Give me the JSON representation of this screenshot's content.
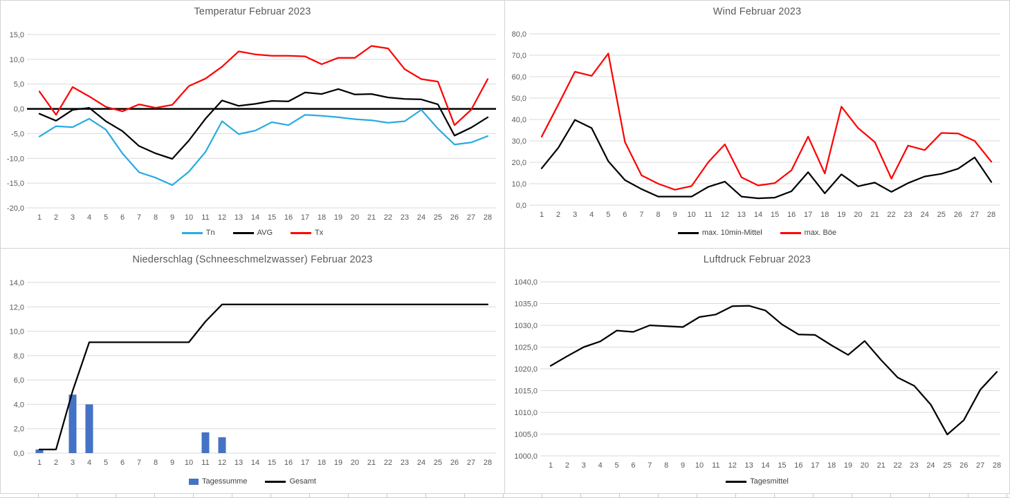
{
  "colors": {
    "grid_line": "#D9D9D9",
    "axis_text": "#595959",
    "title_text": "#595959",
    "panel_border": "#D3D3D3",
    "tn_blue": "#29ABE2",
    "series_black": "#000000",
    "series_red": "#FF0000",
    "bar_blue": "#4472C4"
  },
  "chart_data": [
    {
      "id": "temperatur",
      "type": "line",
      "title": "Temperatur Februar 2023",
      "categories": [
        1,
        2,
        3,
        4,
        5,
        6,
        7,
        8,
        9,
        10,
        11,
        12,
        13,
        14,
        15,
        16,
        17,
        18,
        19,
        20,
        21,
        22,
        23,
        24,
        25,
        26,
        27,
        28
      ],
      "ylim": [
        -20,
        15
      ],
      "ystep": 5,
      "y_tick_labels": [
        "15,0",
        "10,0",
        "5,0",
        "0,0",
        "-5,0",
        "-10,0",
        "-15,0",
        "-20,0"
      ],
      "grid": true,
      "zero_axis": true,
      "legend_position": "bottom",
      "series": [
        {
          "name": "Tn",
          "type": "line",
          "color": "#29ABE2",
          "values": [
            -5.6,
            -3.5,
            -3.7,
            -2.0,
            -4.2,
            -9.0,
            -12.8,
            -13.9,
            -15.4,
            -12.7,
            -8.7,
            -2.5,
            -5.1,
            -4.4,
            -2.7,
            -3.3,
            -1.2,
            -1.4,
            -1.7,
            -2.1,
            -2.3,
            -2.8,
            -2.5,
            -0.2,
            -4.0,
            -7.2,
            -6.8,
            -5.5
          ]
        },
        {
          "name": "AVG",
          "type": "line",
          "color": "#000000",
          "values": [
            -1.0,
            -2.4,
            -0.2,
            0.2,
            -2.5,
            -4.5,
            -7.5,
            -9.0,
            -10.1,
            -6.4,
            -2.0,
            1.7,
            0.6,
            1.0,
            1.6,
            1.5,
            3.3,
            3.0,
            4.0,
            2.9,
            3.0,
            2.3,
            2.0,
            1.9,
            0.9,
            -5.4,
            -3.8,
            -1.7
          ]
        },
        {
          "name": "Tx",
          "type": "line",
          "color": "#FF0000",
          "values": [
            3.5,
            -1.2,
            4.4,
            2.5,
            0.4,
            -0.5,
            0.9,
            0.2,
            0.8,
            4.6,
            6.1,
            8.5,
            11.6,
            11.0,
            10.7,
            10.7,
            10.6,
            9.0,
            10.3,
            10.3,
            12.7,
            12.2,
            8.0,
            6.0,
            5.5,
            -3.3,
            -0.2,
            6.0
          ]
        }
      ]
    },
    {
      "id": "wind",
      "type": "line",
      "title": "Wind Februar 2023",
      "categories": [
        1,
        2,
        3,
        4,
        5,
        6,
        7,
        8,
        9,
        10,
        11,
        12,
        13,
        14,
        15,
        16,
        17,
        18,
        19,
        20,
        21,
        22,
        23,
        24,
        25,
        26,
        27,
        28
      ],
      "ylim": [
        0,
        80
      ],
      "ystep": 10,
      "y_tick_labels": [
        "80,0",
        "70,0",
        "60,0",
        "50,0",
        "40,0",
        "30,0",
        "20,0",
        "10,0",
        "0,0"
      ],
      "grid": true,
      "zero_axis": false,
      "legend_position": "bottom",
      "series": [
        {
          "name": "max. 10min-Mittel",
          "type": "line",
          "color": "#000000",
          "values": [
            17.2,
            26.8,
            39.8,
            36.0,
            20.5,
            11.7,
            7.5,
            4.0,
            4.0,
            4.0,
            8.5,
            11.0,
            4.0,
            3.2,
            3.5,
            6.5,
            15.4,
            5.5,
            14.4,
            8.8,
            10.5,
            6.2,
            10.3,
            13.4,
            14.6,
            17.0,
            22.3,
            10.8
          ]
        },
        {
          "name": "max. Böe",
          "type": "line",
          "color": "#FF0000",
          "values": [
            32.0,
            47.0,
            62.3,
            60.4,
            70.8,
            29.5,
            13.9,
            10.0,
            7.2,
            8.9,
            20.0,
            28.4,
            13.0,
            9.2,
            10.3,
            16.3,
            32.0,
            14.8,
            46.0,
            36.0,
            29.5,
            12.4,
            27.8,
            25.7,
            33.7,
            33.5,
            30.0,
            20.3
          ]
        }
      ]
    },
    {
      "id": "niederschlag",
      "type": "bar",
      "title": "Niederschlag (Schneeschmelzwasser) Februar 2023",
      "categories": [
        1,
        2,
        3,
        4,
        5,
        6,
        7,
        8,
        9,
        10,
        11,
        12,
        13,
        14,
        15,
        16,
        17,
        18,
        19,
        20,
        21,
        22,
        23,
        24,
        25,
        26,
        27,
        28
      ],
      "ylim": [
        0,
        14
      ],
      "ystep": 2,
      "y_tick_labels": [
        "14,0",
        "12,0",
        "10,0",
        "8,0",
        "6,0",
        "4,0",
        "2,0",
        "0,0"
      ],
      "grid": true,
      "zero_axis": false,
      "legend_position": "bottom",
      "series": [
        {
          "name": "Tagessumme",
          "type": "bar",
          "color": "#4472C4",
          "values": [
            0.3,
            0,
            4.8,
            4.0,
            0,
            0,
            0,
            0,
            0,
            0,
            1.7,
            1.3,
            0,
            0,
            0,
            0,
            0,
            0,
            0,
            0,
            0,
            0,
            0,
            0,
            0,
            0,
            0,
            0
          ]
        },
        {
          "name": "Gesamt",
          "type": "line",
          "color": "#000000",
          "values": [
            0.3,
            0.3,
            5.1,
            9.1,
            9.1,
            9.1,
            9.1,
            9.1,
            9.1,
            9.1,
            10.8,
            12.2,
            12.2,
            12.2,
            12.2,
            12.2,
            12.2,
            12.2,
            12.2,
            12.2,
            12.2,
            12.2,
            12.2,
            12.2,
            12.2,
            12.2,
            12.2,
            12.2
          ]
        }
      ]
    },
    {
      "id": "luftdruck",
      "type": "line",
      "title": "Luftdruck Februar 2023",
      "categories": [
        1,
        2,
        3,
        4,
        5,
        6,
        7,
        8,
        9,
        10,
        11,
        12,
        13,
        14,
        15,
        16,
        17,
        18,
        19,
        20,
        21,
        22,
        23,
        24,
        25,
        26,
        27,
        28
      ],
      "ylim": [
        1000,
        1040
      ],
      "ystep": 5,
      "y_tick_labels": [
        "1040,0",
        "1035,0",
        "1030,0",
        "1025,0",
        "1020,0",
        "1015,0",
        "1010,0",
        "1005,0",
        "1000,0"
      ],
      "grid": true,
      "zero_axis": false,
      "legend_position": "bottom",
      "series": [
        {
          "name": "Tagesmittel",
          "type": "line",
          "color": "#000000",
          "values": [
            1020.7,
            1022.9,
            1025.0,
            1026.3,
            1028.8,
            1028.5,
            1030.0,
            1029.8,
            1029.6,
            1031.9,
            1032.5,
            1034.4,
            1034.5,
            1033.4,
            1030.2,
            1027.9,
            1027.8,
            1025.4,
            1023.2,
            1026.4,
            1022.0,
            1018.0,
            1016.1,
            1011.8,
            1004.9,
            1008.2,
            1015.2,
            1019.3
          ]
        }
      ]
    }
  ]
}
